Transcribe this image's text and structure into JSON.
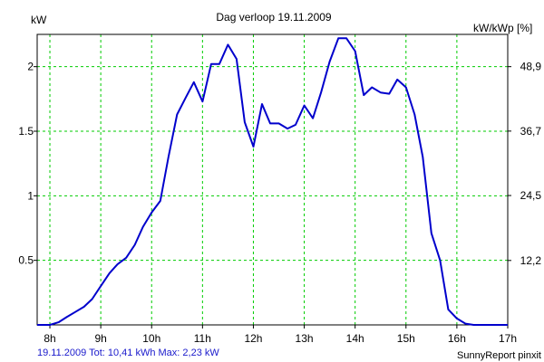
{
  "chart_data": {
    "type": "line",
    "title": "Dag  verloop 19.11.2009",
    "ylabel_left": "kW",
    "ylabel_right": "kW/kWp [%]",
    "xlim": [
      7.75,
      17.0
    ],
    "ylim": [
      0,
      2.25
    ],
    "x_ticks": [
      8,
      9,
      10,
      11,
      12,
      13,
      14,
      15,
      16,
      17
    ],
    "x_tick_labels": [
      "8h",
      "9h",
      "10h",
      "11h",
      "12h",
      "13h",
      "14h",
      "15h",
      "16h",
      "17h"
    ],
    "y_ticks_left": [
      0.5,
      1,
      1.5,
      2
    ],
    "y_tick_labels_left": [
      "0.5",
      "1",
      "1.5",
      "2"
    ],
    "y_ticks_right": [
      12.2,
      24.5,
      36.7,
      48.9
    ],
    "y_tick_labels_right": [
      "12,2",
      "24,5",
      "36,7",
      "48,9"
    ],
    "y_right_scale": 24.45,
    "grid": true,
    "colors": {
      "line": "#0000cc",
      "grid": "#00cc00",
      "axis": "#000000",
      "footer_left": "#1a1acc"
    },
    "series": [
      {
        "x": [
          7.75,
          8.0,
          8.17,
          8.33,
          8.5,
          8.67,
          8.83,
          9.0,
          9.17,
          9.33,
          9.5,
          9.67,
          9.83,
          10.0,
          10.17,
          10.33,
          10.5,
          10.67,
          10.83,
          11.0,
          11.17,
          11.33,
          11.5,
          11.67,
          11.83,
          12.0,
          12.17,
          12.33,
          12.5,
          12.67,
          12.83,
          13.0,
          13.17,
          13.33,
          13.5,
          13.67,
          13.83,
          14.0,
          14.17,
          14.33,
          14.5,
          14.67,
          14.83,
          15.0,
          15.17,
          15.33,
          15.5,
          15.67,
          15.83,
          16.0,
          16.17,
          16.33,
          16.5,
          16.67,
          16.83,
          17.0
        ],
        "y": [
          0.0,
          0.0,
          0.02,
          0.06,
          0.1,
          0.14,
          0.2,
          0.3,
          0.4,
          0.47,
          0.52,
          0.62,
          0.76,
          0.87,
          0.96,
          1.3,
          1.63,
          1.76,
          1.88,
          1.73,
          2.02,
          2.02,
          2.17,
          2.06,
          1.57,
          1.38,
          1.71,
          1.56,
          1.56,
          1.52,
          1.55,
          1.7,
          1.6,
          1.8,
          2.04,
          2.22,
          2.22,
          2.12,
          1.78,
          1.84,
          1.8,
          1.79,
          1.9,
          1.84,
          1.63,
          1.3,
          0.71,
          0.5,
          0.12,
          0.05,
          0.01,
          0.0,
          0.0,
          0.0,
          0.0,
          0.0
        ]
      }
    ]
  },
  "footer": {
    "summary": "19.11.2009 Tot: 10,41 kWh Max: 2,23 kW",
    "brand": "SunnyReport pinxit"
  }
}
